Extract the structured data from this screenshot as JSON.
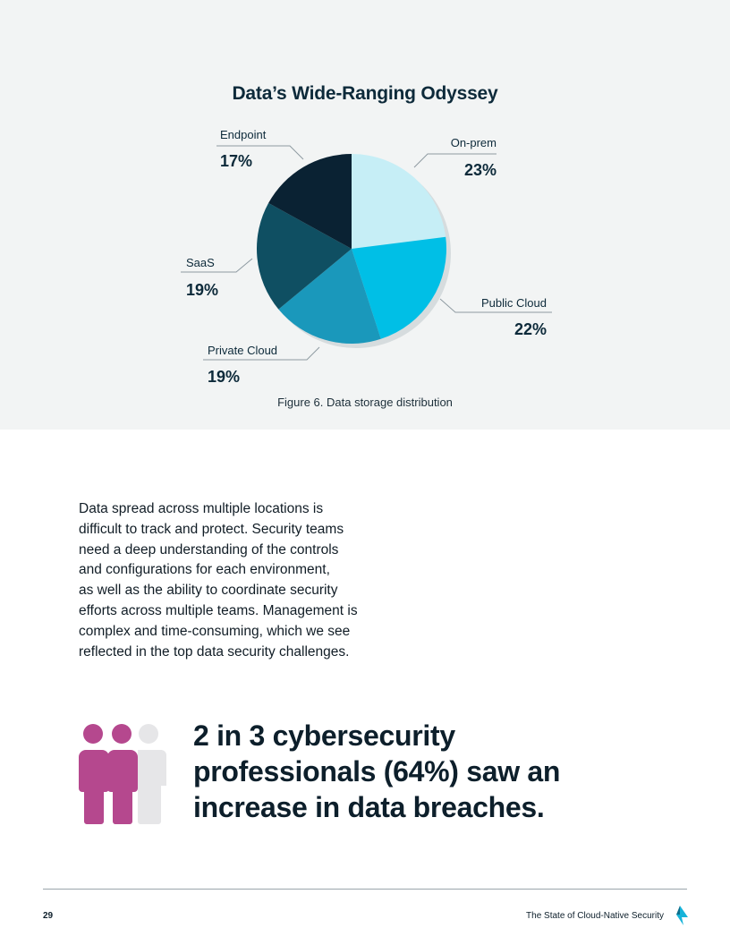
{
  "chart_data": {
    "type": "pie",
    "title": "Data’s Wide-Ranging Odyssey",
    "categories": [
      "On-prem",
      "Public Cloud",
      "Private Cloud",
      "SaaS",
      "Endpoint"
    ],
    "values": [
      23,
      22,
      19,
      19,
      17
    ],
    "value_labels": [
      "23%",
      "22%",
      "19%",
      "19%",
      "17%"
    ],
    "colors": [
      "#c6eef6",
      "#00bfe6",
      "#1a98bb",
      "#0f4f62",
      "#0a2233"
    ],
    "caption": "Figure 6. Data storage distribution"
  },
  "body": {
    "paragraph": "Data spread across multiple locations is\ndifficult to track and protect. Security teams\nneed a deep understanding of the controls\nand configurations for each environment,\nas well as the ability to coordinate security\nefforts across multiple teams. Management is\ncomplex and time-consuming, which we see\nreflected in the top data security challenges."
  },
  "stat": {
    "text": "2 in 3 cybersecurity\nprofessionals (64%) saw an\nincrease in data breaches.",
    "icon": "people-icon",
    "highlight_color": "#b5488e",
    "muted_color": "#e6e6e8"
  },
  "footer": {
    "page_number": "29",
    "title": "The State of Cloud-Native Security",
    "logo": "logo-icon"
  }
}
